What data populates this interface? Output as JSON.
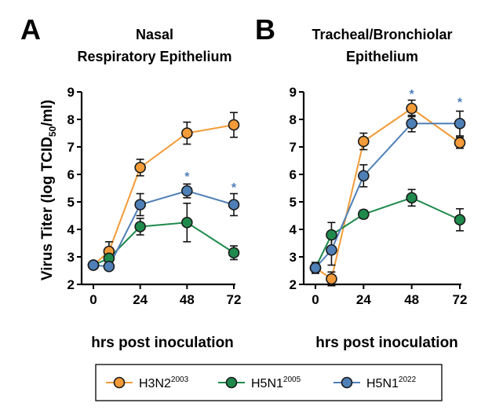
{
  "colors": {
    "H3N2": "#f29b38",
    "H5N1_2005": "#1f8a4c",
    "H5N1_2022": "#4f7fb7",
    "star": "#4f7fb7"
  },
  "legend": [
    {
      "key": "H3N2",
      "base": "H3N2",
      "sup": "2003"
    },
    {
      "key": "H5N1_2005",
      "base": "H5N1",
      "sup": "2005"
    },
    {
      "key": "H5N1_2022",
      "base": "H5N1",
      "sup": "2022"
    }
  ],
  "chart_data": [
    {
      "type": "line",
      "panel": "A",
      "title": [
        "Nasal",
        "Respiratory Epithelium"
      ],
      "xlabel": "hrs post inoculation",
      "ylabel": "Virus Titer (log TCID50/ml)",
      "ylabel_parts": {
        "pre": "Virus Titer (log TCID",
        "sub": "50",
        "post": "/ml)"
      },
      "x": [
        0,
        8,
        24,
        48,
        72
      ],
      "xticks": [
        0,
        24,
        48,
        72
      ],
      "yticks": [
        2,
        3,
        4,
        5,
        6,
        7,
        8,
        9
      ],
      "xlim": [
        0,
        72
      ],
      "ylim": [
        2,
        9
      ],
      "series": [
        {
          "name": "H3N2 2003",
          "key": "H3N2",
          "values": [
            2.7,
            3.2,
            6.25,
            7.5,
            7.8
          ],
          "errors": [
            0.1,
            0.35,
            0.3,
            0.4,
            0.45
          ]
        },
        {
          "name": "H5N1 2005",
          "key": "H5N1_2005",
          "values": [
            2.7,
            2.95,
            4.1,
            4.25,
            3.15
          ],
          "errors": [
            0.1,
            0.15,
            0.3,
            0.7,
            0.25
          ]
        },
        {
          "name": "H5N1 2022",
          "key": "H5N1_2022",
          "values": [
            2.7,
            2.65,
            4.9,
            5.4,
            4.9
          ],
          "errors": [
            0.1,
            0.1,
            0.4,
            0.25,
            0.4
          ]
        }
      ],
      "annotations": [
        {
          "text": "*",
          "x": 48,
          "y": 5.95
        },
        {
          "text": "*",
          "x": 72,
          "y": 5.55
        }
      ]
    },
    {
      "type": "line",
      "panel": "B",
      "title": [
        "Tracheal/Bronchiolar",
        "Epithelium"
      ],
      "xlabel": "hrs post inoculation",
      "ylabel": "",
      "x": [
        0,
        8,
        24,
        48,
        72
      ],
      "xticks": [
        0,
        24,
        48,
        72
      ],
      "yticks": [
        2,
        3,
        4,
        5,
        6,
        7,
        8,
        9
      ],
      "xlim": [
        0,
        72
      ],
      "ylim": [
        2,
        9
      ],
      "series": [
        {
          "name": "H3N2 2003",
          "key": "H3N2",
          "values": [
            2.6,
            2.2,
            7.2,
            8.4,
            7.15
          ],
          "errors": [
            0.15,
            0.25,
            0.3,
            0.3,
            0.2
          ]
        },
        {
          "name": "H5N1 2005",
          "key": "H5N1_2005",
          "values": [
            2.6,
            3.8,
            4.55,
            5.15,
            4.35
          ],
          "errors": [
            0.2,
            0.45,
            0.15,
            0.3,
            0.4
          ]
        },
        {
          "name": "H5N1 2022",
          "key": "H5N1_2022",
          "values": [
            2.6,
            3.25,
            5.95,
            7.85,
            7.85
          ],
          "errors": [
            0.15,
            0.55,
            0.4,
            0.3,
            0.45
          ]
        }
      ],
      "annotations": [
        {
          "text": "*",
          "x": 48,
          "y": 8.95
        },
        {
          "text": "*",
          "x": 72,
          "y": 8.65
        }
      ]
    }
  ]
}
